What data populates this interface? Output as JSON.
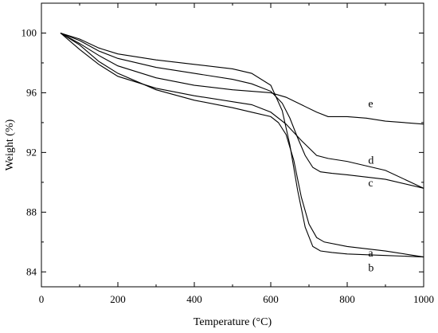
{
  "chart_data": {
    "type": "line",
    "title": "",
    "xlabel": "Temperature (°C)",
    "ylabel": "Weight (%)",
    "xlim": [
      0,
      1000
    ],
    "ylim": [
      83,
      102
    ],
    "xticks": [
      0,
      200,
      400,
      600,
      800,
      1000
    ],
    "yticks": [
      84,
      88,
      92,
      96,
      100
    ],
    "grid": false,
    "legend": "none",
    "series": [
      {
        "name": "a",
        "x": [
          50,
          100,
          150,
          200,
          300,
          400,
          500,
          550,
          600,
          620,
          640,
          660,
          680,
          700,
          720,
          740,
          800,
          900,
          1000
        ],
        "y": [
          100,
          99.2,
          98.1,
          97.3,
          96.2,
          95.5,
          95.0,
          94.7,
          94.4,
          94.0,
          93.2,
          91.5,
          89.0,
          87.2,
          86.3,
          86.0,
          85.7,
          85.4,
          85.0
        ],
        "label_at": [
          855,
          85.3
        ]
      },
      {
        "name": "b",
        "x": [
          50,
          100,
          150,
          200,
          300,
          400,
          500,
          550,
          600,
          630,
          650,
          670,
          690,
          710,
          730,
          760,
          800,
          900,
          1000
        ],
        "y": [
          100,
          99.6,
          99.0,
          98.6,
          98.2,
          97.9,
          97.6,
          97.3,
          96.5,
          94.8,
          92.5,
          89.5,
          87.0,
          85.7,
          85.4,
          85.3,
          85.2,
          85.1,
          85.0
        ],
        "label_at": [
          855,
          84.3
        ]
      },
      {
        "name": "c",
        "x": [
          50,
          100,
          150,
          200,
          300,
          400,
          500,
          550,
          600,
          630,
          650,
          670,
          690,
          710,
          730,
          760,
          800,
          900,
          1000
        ],
        "y": [
          100,
          99.5,
          98.8,
          98.3,
          97.7,
          97.3,
          96.9,
          96.6,
          96.1,
          95.3,
          94.3,
          93.0,
          91.8,
          91.0,
          90.7,
          90.6,
          90.5,
          90.2,
          89.6
        ],
        "label_at": [
          855,
          90.0
        ]
      },
      {
        "name": "d",
        "x": [
          50,
          100,
          150,
          200,
          300,
          400,
          500,
          550,
          600,
          640,
          680,
          720,
          750,
          800,
          850,
          900,
          1000
        ],
        "y": [
          100,
          98.9,
          97.9,
          97.1,
          96.3,
          95.8,
          95.4,
          95.2,
          94.7,
          93.9,
          92.8,
          91.8,
          91.6,
          91.4,
          91.1,
          90.8,
          89.6
        ],
        "label_at": [
          855,
          91.5
        ]
      },
      {
        "name": "e",
        "x": [
          50,
          100,
          150,
          200,
          300,
          400,
          500,
          550,
          600,
          640,
          680,
          720,
          750,
          800,
          850,
          900,
          1000
        ],
        "y": [
          100,
          99.3,
          98.5,
          97.8,
          97.0,
          96.5,
          96.2,
          96.1,
          96.0,
          95.7,
          95.2,
          94.7,
          94.4,
          94.4,
          94.3,
          94.1,
          93.9
        ],
        "label_at": [
          855,
          95.3
        ]
      }
    ]
  }
}
